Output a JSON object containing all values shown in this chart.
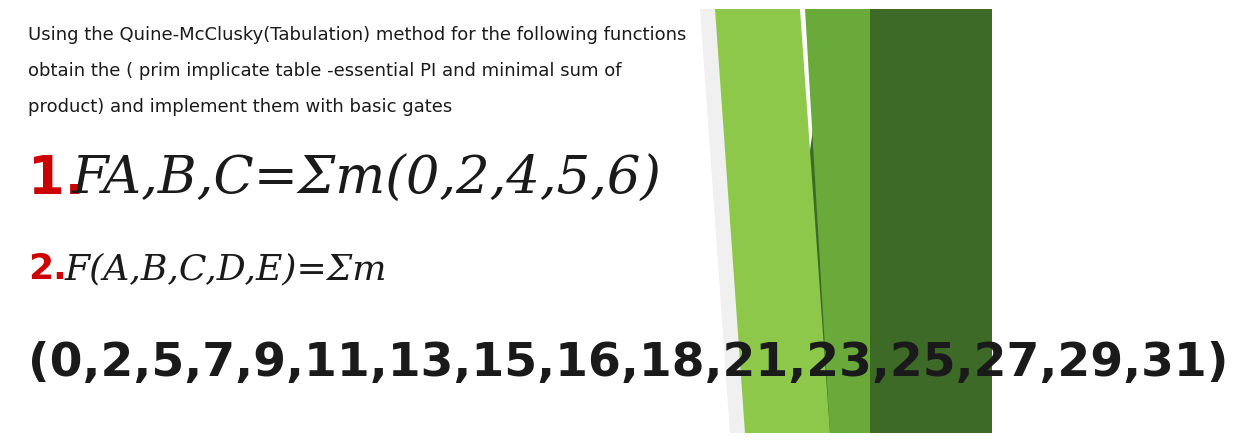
{
  "bg_color": "#ffffff",
  "header_text_line1": "Using the Quine-McClusky(Tabulation) method for the following functions",
  "header_text_line2": "obtain the ( prim implicate table -essential PI and minimal sum of",
  "header_text_line3": "product) and implement them with basic gates",
  "header_fontsize": 13.0,
  "header_color": "#1a1a1a",
  "item1_number": "1.",
  "item1_number_color": "#cc0000",
  "item1_math": "FA,B,C=Σm(0,2,4,5,6)",
  "item1_fontsize": 38,
  "item2_number": "2.",
  "item2_number_color": "#cc0000",
  "item2_math": "F(A,B,C,D,E)=Σm",
  "item2_fontsize": 26,
  "item3_text": "(0,2,5,7,9,11,13,15,16,18,21,23,25,27,29,31)",
  "item3_fontsize": 34,
  "item3_color": "#1a1a1a",
  "green_dark": "#3d6b27",
  "green_mid": "#6aaa3a",
  "green_light": "#8ec84a",
  "green_white_band": "#e8f0e0",
  "fig_width": 9.82,
  "fig_height": 4.24
}
